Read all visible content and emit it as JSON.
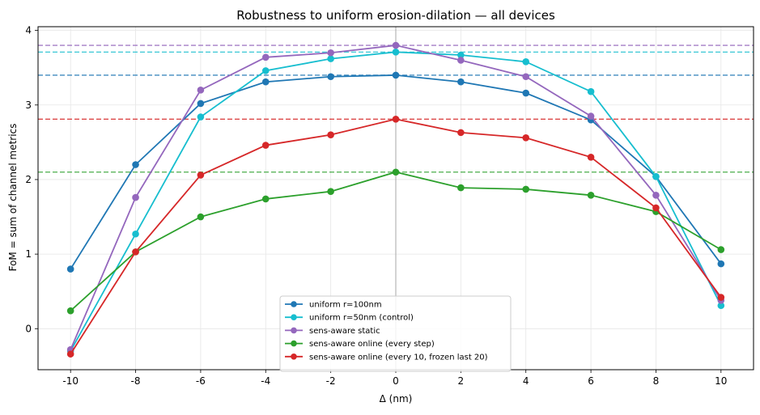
{
  "chart_data": {
    "type": "line",
    "title": "Robustness to uniform erosion-dilation — all devices",
    "xlabel": "Δ  (nm)",
    "ylabel": "FoM = sum of channel metrics",
    "xlim": [
      -11,
      11
    ],
    "ylim": [
      -0.55,
      4.05
    ],
    "xticks": [
      -10,
      -8,
      -6,
      -4,
      -2,
      0,
      2,
      4,
      6,
      8,
      10
    ],
    "yticks": [
      0,
      1,
      2,
      3,
      4
    ],
    "grid": true,
    "legend_position": "lower-center",
    "vertical_reference_x": 0,
    "x": [
      -10,
      -8,
      -6,
      -4,
      -2,
      0,
      2,
      4,
      6,
      8,
      10
    ],
    "series": [
      {
        "name": "uniform r=100nm",
        "color": "#1f77b4",
        "values": [
          0.8,
          2.2,
          3.02,
          3.31,
          3.38,
          3.4,
          3.31,
          3.16,
          2.8,
          2.04,
          0.87
        ],
        "reference_level": 3.4
      },
      {
        "name": "uniform r=50nm (control)",
        "color": "#17becf",
        "values": [
          -0.3,
          1.27,
          2.84,
          3.46,
          3.62,
          3.71,
          3.67,
          3.58,
          3.18,
          2.04,
          0.31
        ],
        "reference_level": 3.71
      },
      {
        "name": "sens-aware static",
        "color": "#9467bd",
        "values": [
          -0.28,
          1.76,
          3.2,
          3.64,
          3.7,
          3.8,
          3.6,
          3.38,
          2.85,
          1.79,
          0.38
        ],
        "reference_level": 3.8
      },
      {
        "name": "sens-aware online (every step)",
        "color": "#2ca02c",
        "values": [
          0.24,
          1.03,
          1.5,
          1.74,
          1.84,
          2.1,
          1.89,
          1.87,
          1.79,
          1.57,
          1.06
        ],
        "reference_level": 2.1
      },
      {
        "name": "sens-aware online (every 10, frozen last 20)",
        "color": "#d62728",
        "values": [
          -0.34,
          1.03,
          2.06,
          2.46,
          2.6,
          2.81,
          2.63,
          2.56,
          2.3,
          1.62,
          0.42
        ],
        "reference_level": 2.81
      }
    ]
  }
}
